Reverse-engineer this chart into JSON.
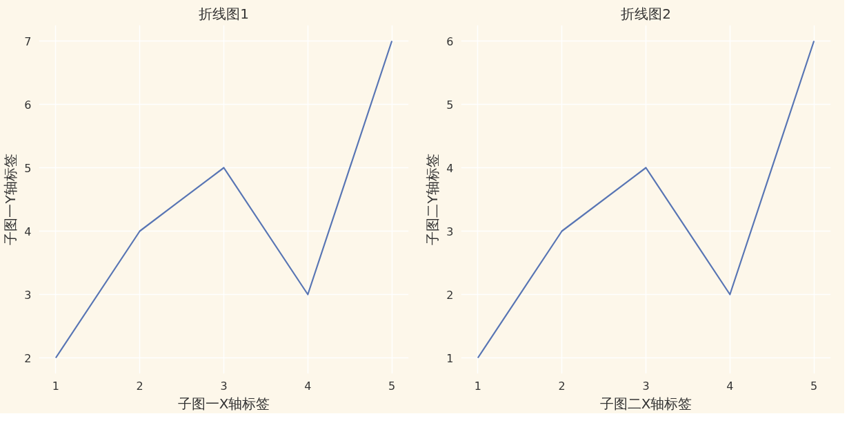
{
  "chart_data": [
    {
      "type": "line",
      "title": "折线图1",
      "xlabel": "子图一X轴标签",
      "ylabel": "子图一Y轴标签",
      "x": [
        1,
        2,
        3,
        4,
        5
      ],
      "series": [
        {
          "color": "#5875b4",
          "values": [
            2,
            4,
            5,
            3,
            7
          ]
        }
      ],
      "xlim": [
        0.8,
        5.2
      ],
      "ylim": [
        1.75,
        7.25
      ],
      "xticks": [
        1,
        2,
        3,
        4,
        5
      ],
      "yticks": [
        2,
        3,
        4,
        5,
        6,
        7
      ],
      "grid": true,
      "line_style": "solid"
    },
    {
      "type": "line",
      "title": "折线图2",
      "xlabel": "子图二X轴标签",
      "ylabel": "子图二Y轴标签",
      "x": [
        1,
        2,
        3,
        4,
        5
      ],
      "series": [
        {
          "color": "#5875b4",
          "values": [
            1,
            3,
            4,
            2,
            6
          ]
        }
      ],
      "xlim": [
        0.8,
        5.2
      ],
      "ylim": [
        0.75,
        6.25
      ],
      "xticks": [
        1,
        2,
        3,
        4,
        5
      ],
      "yticks": [
        1,
        2,
        3,
        4,
        5,
        6
      ],
      "grid": true,
      "line_style": "solid"
    }
  ]
}
